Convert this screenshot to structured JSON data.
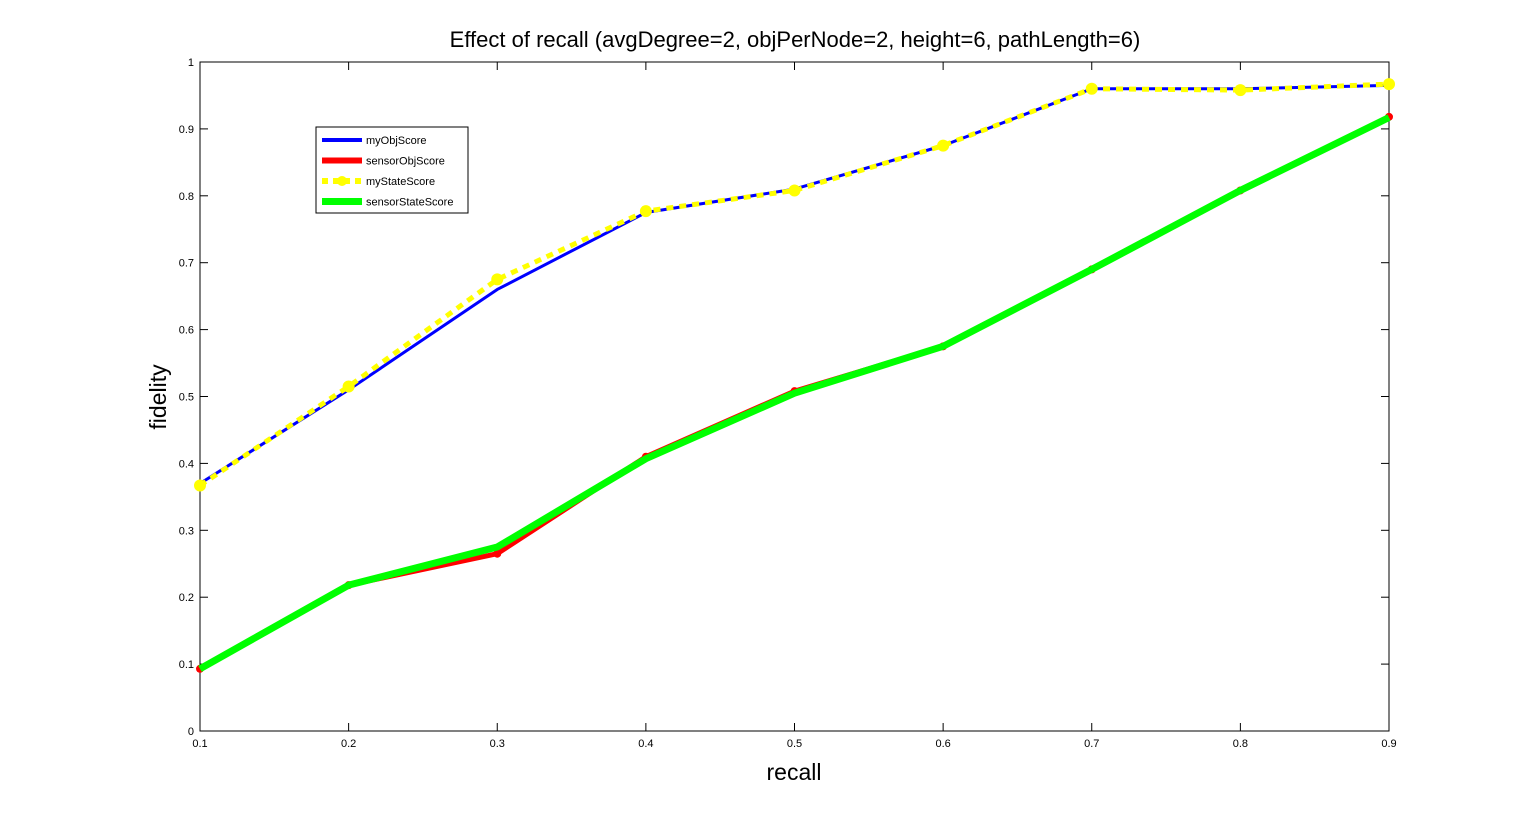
{
  "chart_data": {
    "type": "line",
    "title": "Effect of recall (avgDegree=2, objPerNode=2, height=6, pathLength=6)",
    "xlabel": "recall",
    "ylabel": "fidelity",
    "xlim": [
      0.1,
      0.9
    ],
    "ylim": [
      0,
      1
    ],
    "x": [
      0.1,
      0.2,
      0.3,
      0.4,
      0.5,
      0.6,
      0.7,
      0.8,
      0.9
    ],
    "x_tick_labels": [
      "0.1",
      "0.2",
      "0.3",
      "0.4",
      "0.5",
      "0.6",
      "0.7",
      "0.8",
      "0.9"
    ],
    "y_ticks": [
      0,
      0.1,
      0.2,
      0.3,
      0.4,
      0.5,
      0.6,
      0.7,
      0.8,
      0.9,
      1
    ],
    "y_tick_labels": [
      "0",
      "0.1",
      "0.2",
      "0.3",
      "0.4",
      "0.5",
      "0.6",
      "0.7",
      "0.8",
      "0.9",
      "1"
    ],
    "grid": false,
    "legend_position": "top-left",
    "series": [
      {
        "name": "myObjScore",
        "color": "#0000ff",
        "style": "solid",
        "values": [
          0.37,
          0.51,
          0.66,
          0.775,
          0.81,
          0.875,
          0.96,
          0.96,
          0.965
        ]
      },
      {
        "name": "sensorObjScore",
        "color": "#ff0000",
        "style": "solid-markers",
        "values": [
          0.093,
          0.218,
          0.265,
          0.41,
          0.508,
          0.575,
          0.69,
          0.808,
          0.918
        ]
      },
      {
        "name": "myStateScore",
        "color": "#ffff00",
        "style": "dashed-markers",
        "values": [
          0.367,
          0.515,
          0.675,
          0.777,
          0.808,
          0.875,
          0.96,
          0.958,
          0.967
        ]
      },
      {
        "name": "sensorStateScore",
        "color": "#00ff00",
        "style": "solid-thick",
        "values": [
          0.093,
          0.218,
          0.275,
          0.407,
          0.505,
          0.575,
          0.69,
          0.808,
          0.917
        ]
      }
    ]
  }
}
